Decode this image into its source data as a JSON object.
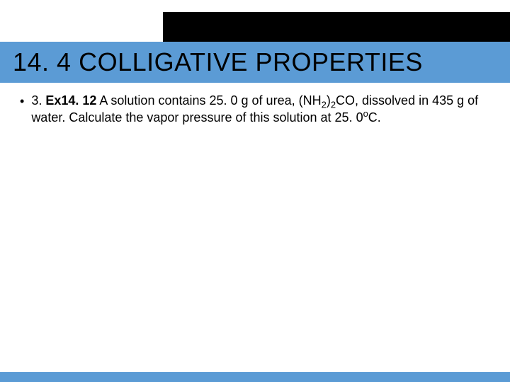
{
  "theme": {
    "title_band_color": "#5b9bd5",
    "top_bar_color": "#000000",
    "bottom_bar_color": "#5b9bd5",
    "background_color": "#ffffff",
    "text_color": "#000000",
    "title_fontsize": 36,
    "body_fontsize": 18
  },
  "title": "14. 4 COLLIGATIVE PROPERTIES",
  "item": {
    "prefix": "3.  ",
    "label": "Ex14. 12",
    "text_before_formula": "  A solution contains 25. 0 g of urea, (NH",
    "sub1": "2",
    "mid1": ")",
    "sub2": "2",
    "mid2": "CO, dissolved in 435 g of water.  Calculate the vapor pressure of this solution at 25. 0",
    "sup": "o",
    "after": "C."
  }
}
